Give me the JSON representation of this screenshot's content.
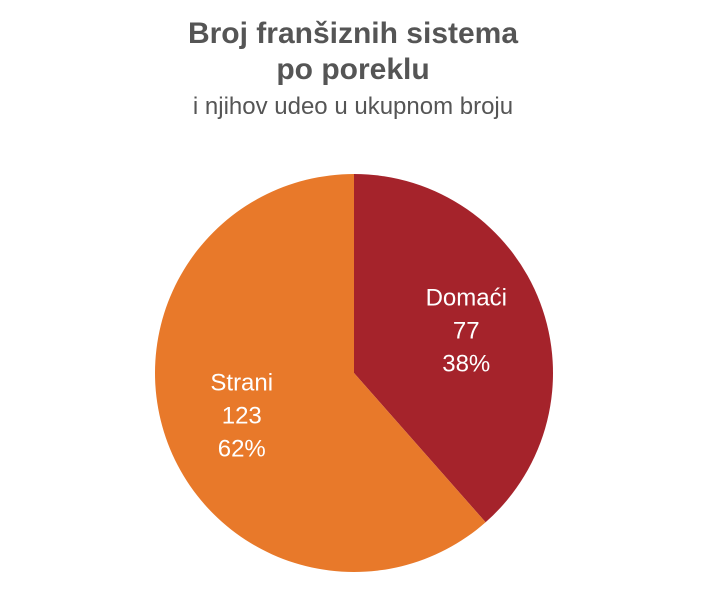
{
  "chart_data": {
    "type": "pie",
    "title_lines": [
      "Broj franšiznih sistema",
      "po poreklu"
    ],
    "subtitle": "i njihov udeo u ukupnom broju",
    "slices": [
      {
        "name": "Domaći",
        "value": 77,
        "percent_label": "38%",
        "color": "#A5232B"
      },
      {
        "name": "Strani",
        "value": 123,
        "percent_label": "62%",
        "color": "#E8792A"
      }
    ],
    "start_angle_deg": 0,
    "direction": "clockwise",
    "legend": "none"
  }
}
